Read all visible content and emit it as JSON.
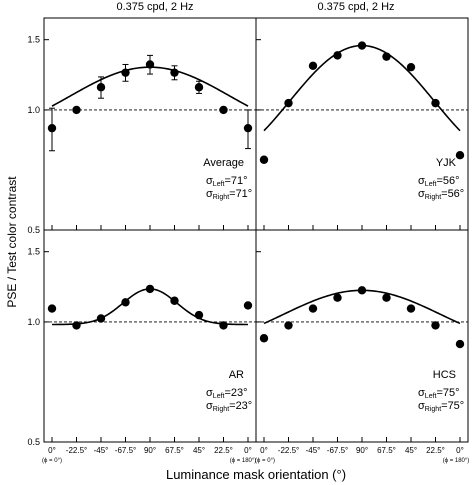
{
  "figure": {
    "ylabel": "PSE / Test color contrast",
    "xlabel": "Luminance mask orientation (°)",
    "column_titles": [
      "0.375 cpd, 2 Hz",
      "0.375 cpd, 2 Hz"
    ],
    "phi_left": "(ϕ = 0°)",
    "phi_right": "(ϕ = 180°)",
    "sigma_symbol": "σ"
  },
  "chart_data": {
    "type": "scatter",
    "x_tick_labels": [
      "0°",
      "-22.5°",
      "-45°",
      "-67.5°",
      "90°",
      "67.5°",
      "45°",
      "22.5°",
      "0°"
    ],
    "x_positions": [
      0,
      1,
      2,
      3,
      4,
      5,
      6,
      7,
      8
    ],
    "y_scale": "log",
    "ylim": [
      0.5,
      1.7
    ],
    "y_ticks": [
      0.5,
      1.0,
      1.5
    ],
    "y_tick_labels": [
      "0.5",
      "1.0",
      "1.5"
    ],
    "reference_line": 1.0,
    "panels": [
      {
        "name": "Average",
        "sigma_left": "71°",
        "sigma_right": "71°",
        "values": [
          0.9,
          1.0,
          1.14,
          1.24,
          1.3,
          1.24,
          1.14,
          1.0,
          0.9
        ],
        "errors": [
          0.11,
          0.015,
          0.07,
          0.06,
          0.07,
          0.05,
          0.04,
          0.015,
          0.1
        ],
        "fit_peak": 1.28,
        "fit_base": 0.86
      },
      {
        "name": "YJK",
        "sigma_left": "56°",
        "sigma_right": "56°",
        "values": [
          0.75,
          1.04,
          1.29,
          1.37,
          1.45,
          1.36,
          1.28,
          1.04,
          0.77
        ],
        "errors": [],
        "fit_peak": 1.45,
        "fit_base": 0.7
      },
      {
        "name": "AR",
        "sigma_left": "23°",
        "sigma_right": "23°",
        "values": [
          1.08,
          0.98,
          1.02,
          1.12,
          1.21,
          1.13,
          1.04,
          0.98,
          1.1
        ],
        "errors": [],
        "fit_peak": 1.21,
        "fit_base": 0.985
      },
      {
        "name": "HCS",
        "sigma_left": "75°",
        "sigma_right": "75°",
        "values": [
          0.91,
          0.98,
          1.08,
          1.15,
          1.2,
          1.15,
          1.08,
          0.98,
          0.88
        ],
        "errors": [],
        "fit_peak": 1.2,
        "fit_base": 0.86
      }
    ]
  }
}
